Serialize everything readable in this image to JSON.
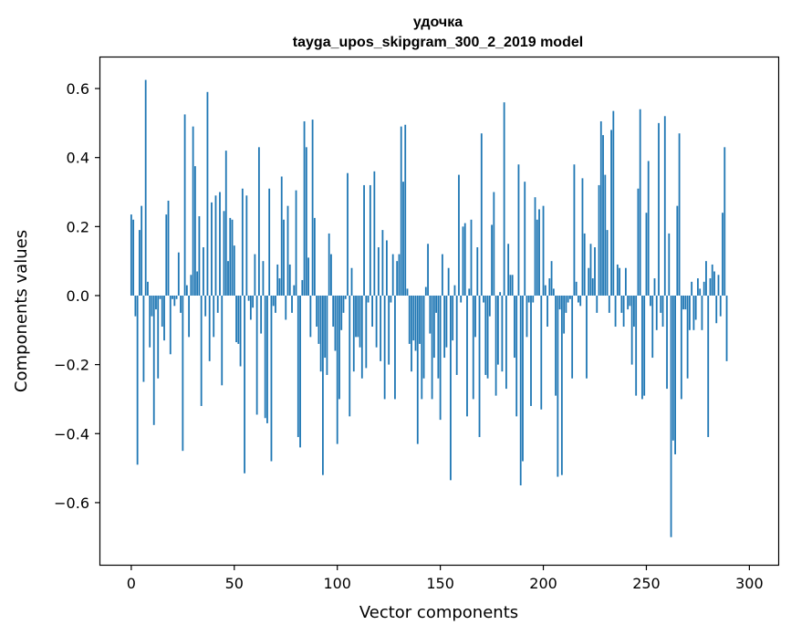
{
  "chart_data": {
    "type": "bar",
    "title": "удочка",
    "subtitle": "tayga_upos_skipgram_300_2_2019 model",
    "xlabel": "Vector components",
    "ylabel": "Components values",
    "xlim": [
      -15,
      314
    ],
    "ylim": [
      -0.78,
      0.69
    ],
    "xticks": [
      0,
      50,
      100,
      150,
      200,
      250,
      300
    ],
    "xtick_labels": [
      "0",
      "50",
      "100",
      "150",
      "200",
      "250",
      "300"
    ],
    "yticks": [
      -0.6,
      -0.4,
      -0.2,
      0.0,
      0.2,
      0.4,
      0.6
    ],
    "ytick_labels": [
      "−0.6",
      "−0.4",
      "−0.2",
      "0.0",
      "0.2",
      "0.4",
      "0.6"
    ],
    "bar_color": "#1f77b4",
    "x_start": 0,
    "values": [
      0.235,
      0.22,
      -0.06,
      -0.49,
      0.19,
      0.26,
      -0.25,
      0.625,
      0.04,
      -0.15,
      -0.06,
      -0.375,
      -0.04,
      -0.24,
      -0.01,
      -0.09,
      -0.13,
      0.235,
      0.275,
      -0.17,
      -0.01,
      -0.03,
      -0.01,
      0.125,
      -0.05,
      -0.45,
      0.525,
      0.03,
      -0.12,
      0.06,
      0.49,
      0.375,
      0.07,
      0.23,
      -0.32,
      0.14,
      -0.06,
      0.59,
      -0.19,
      0.27,
      -0.12,
      0.29,
      -0.05,
      0.3,
      -0.26,
      0.245,
      0.42,
      0.1,
      0.225,
      0.22,
      0.145,
      -0.135,
      -0.14,
      -0.205,
      0.31,
      -0.515,
      0.29,
      -0.015,
      -0.07,
      -0.035,
      0.12,
      -0.345,
      0.43,
      -0.11,
      0.1,
      -0.355,
      -0.37,
      0.31,
      -0.48,
      -0.03,
      -0.05,
      0.09,
      0.05,
      0.345,
      0.22,
      -0.07,
      0.26,
      0.09,
      -0.05,
      0.03,
      0.305,
      -0.41,
      -0.44,
      0.045,
      0.505,
      0.43,
      0.11,
      -0.12,
      0.51,
      0.225,
      -0.09,
      -0.14,
      -0.22,
      -0.52,
      -0.18,
      -0.23,
      0.18,
      0.12,
      -0.09,
      -0.16,
      -0.43,
      -0.3,
      -0.1,
      -0.05,
      -0.01,
      0.355,
      -0.35,
      0.08,
      -0.22,
      -0.12,
      -0.12,
      -0.15,
      -0.24,
      0.32,
      -0.21,
      -0.02,
      0.32,
      -0.09,
      0.36,
      -0.15,
      0.14,
      -0.19,
      0.19,
      -0.3,
      0.16,
      -0.2,
      -0.02,
      0.12,
      -0.3,
      0.1,
      0.12,
      0.49,
      0.33,
      0.495,
      0.02,
      -0.14,
      -0.22,
      -0.13,
      -0.16,
      -0.43,
      -0.14,
      -0.3,
      -0.24,
      0.025,
      0.15,
      -0.11,
      -0.3,
      -0.18,
      -0.05,
      -0.24,
      -0.36,
      0.12,
      -0.18,
      -0.15,
      0.08,
      -0.535,
      -0.13,
      0.03,
      -0.23,
      0.35,
      -0.02,
      0.2,
      0.21,
      -0.35,
      0.02,
      0.22,
      -0.3,
      -0.12,
      0.14,
      -0.41,
      0.47,
      -0.02,
      -0.23,
      -0.24,
      -0.06,
      0.205,
      0.3,
      -0.29,
      -0.2,
      0.01,
      -0.22,
      0.56,
      -0.27,
      0.15,
      0.06,
      0.06,
      -0.18,
      -0.35,
      0.38,
      -0.55,
      -0.48,
      0.33,
      -0.12,
      -0.02,
      -0.32,
      -0.02,
      0.285,
      0.22,
      0.25,
      -0.33,
      0.26,
      0.03,
      -0.09,
      0.05,
      0.1,
      0.02,
      -0.29,
      -0.525,
      -0.04,
      -0.52,
      -0.11,
      -0.05,
      -0.02,
      -0.01,
      -0.24,
      0.38,
      0.04,
      -0.02,
      -0.03,
      0.34,
      0.18,
      -0.24,
      0.08,
      0.15,
      0.05,
      0.14,
      -0.05,
      0.32,
      0.505,
      0.465,
      0.35,
      0.19,
      -0.05,
      0.48,
      0.535,
      -0.09,
      0.09,
      0.08,
      -0.05,
      -0.09,
      0.08,
      -0.04,
      -0.03,
      -0.2,
      -0.09,
      -0.29,
      0.31,
      0.54,
      -0.3,
      -0.29,
      0.24,
      0.39,
      -0.03,
      -0.18,
      0.05,
      -0.1,
      0.5,
      -0.05,
      -0.09,
      0.52,
      -0.27,
      0.18,
      -0.7,
      -0.42,
      -0.46,
      0.26,
      0.47,
      -0.3,
      -0.04,
      -0.04,
      -0.24,
      -0.1,
      0.04,
      -0.1,
      -0.07,
      0.05,
      0.02,
      -0.1,
      0.04,
      0.1,
      -0.41,
      0.05,
      0.09,
      0.07,
      -0.08,
      0.06,
      -0.06,
      0.24,
      0.43,
      -0.19
    ]
  }
}
